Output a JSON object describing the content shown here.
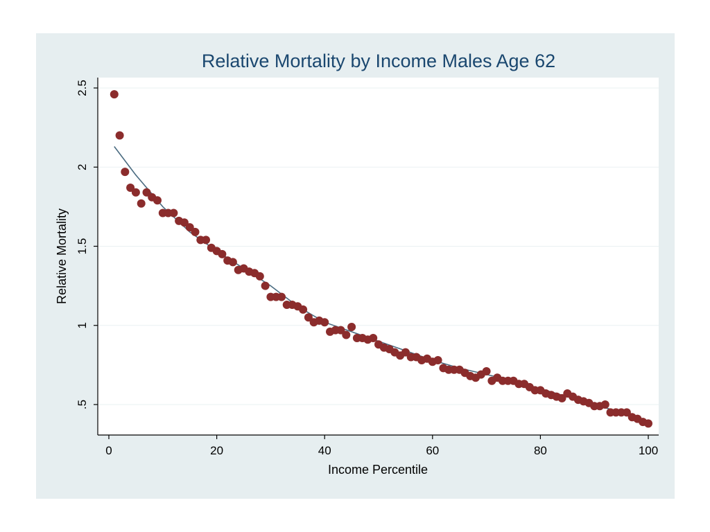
{
  "chart_data": {
    "type": "scatter",
    "title": "Relative Mortality by Income Males Age 62",
    "xlabel": "Income Percentile",
    "ylabel": "Relative Mortality",
    "xlim": [
      0,
      100
    ],
    "ylim": [
      0.4,
      2.55
    ],
    "x_ticks": [
      0,
      20,
      40,
      60,
      80,
      100
    ],
    "x_tick_labels": [
      "0",
      "20",
      "40",
      "60",
      "80",
      "100"
    ],
    "y_ticks": [
      0.5,
      1,
      1.5,
      2,
      2.5
    ],
    "y_tick_labels": [
      ".5",
      "1",
      "1.5",
      "2",
      "2.5"
    ],
    "grid": true,
    "legend": "none",
    "colors": {
      "panel_background": "#e6eef0",
      "plot_background": "#ffffff",
      "points": "#8b2c2c",
      "fit_line": "#4a6b80",
      "title": "#1a476f"
    },
    "series": [
      {
        "name": "Relative mortality",
        "kind": "scatter",
        "x": [
          1,
          2,
          3,
          4,
          5,
          6,
          7,
          8,
          9,
          10,
          11,
          12,
          13,
          14,
          15,
          16,
          17,
          18,
          19,
          20,
          21,
          22,
          23,
          24,
          25,
          26,
          27,
          28,
          29,
          30,
          31,
          32,
          33,
          34,
          35,
          36,
          37,
          38,
          39,
          40,
          41,
          42,
          43,
          44,
          45,
          46,
          47,
          48,
          49,
          50,
          51,
          52,
          53,
          54,
          55,
          56,
          57,
          58,
          59,
          60,
          61,
          62,
          63,
          64,
          65,
          66,
          67,
          68,
          69,
          70,
          71,
          72,
          73,
          74,
          75,
          76,
          77,
          78,
          79,
          80,
          81,
          82,
          83,
          84,
          85,
          86,
          87,
          88,
          89,
          90,
          91,
          92,
          93,
          94,
          95,
          96,
          97,
          98,
          99,
          100
        ],
        "y": [
          2.46,
          2.2,
          1.97,
          1.87,
          1.84,
          1.77,
          1.84,
          1.81,
          1.79,
          1.71,
          1.71,
          1.71,
          1.66,
          1.65,
          1.62,
          1.59,
          1.54,
          1.54,
          1.49,
          1.47,
          1.45,
          1.41,
          1.4,
          1.35,
          1.36,
          1.34,
          1.33,
          1.31,
          1.25,
          1.18,
          1.18,
          1.18,
          1.13,
          1.13,
          1.12,
          1.1,
          1.05,
          1.02,
          1.03,
          1.02,
          0.96,
          0.97,
          0.97,
          0.94,
          0.99,
          0.92,
          0.92,
          0.91,
          0.92,
          0.88,
          0.86,
          0.85,
          0.83,
          0.81,
          0.83,
          0.8,
          0.8,
          0.78,
          0.79,
          0.77,
          0.78,
          0.73,
          0.72,
          0.72,
          0.72,
          0.7,
          0.68,
          0.67,
          0.69,
          0.71,
          0.65,
          0.67,
          0.65,
          0.65,
          0.65,
          0.63,
          0.63,
          0.61,
          0.59,
          0.59,
          0.57,
          0.56,
          0.55,
          0.54,
          0.57,
          0.55,
          0.53,
          0.52,
          0.51,
          0.49,
          0.49,
          0.5,
          0.45,
          0.45,
          0.45,
          0.45,
          0.42,
          0.41,
          0.39,
          0.38
        ]
      },
      {
        "name": "Fitted curve",
        "kind": "line",
        "x": [
          1,
          5,
          10,
          15,
          20,
          25,
          30,
          35,
          40,
          45,
          50,
          55,
          60,
          65,
          70,
          75,
          80,
          85,
          90,
          95,
          100
        ],
        "y": [
          2.13,
          1.95,
          1.75,
          1.59,
          1.47,
          1.36,
          1.25,
          1.12,
          1.02,
          0.96,
          0.9,
          0.84,
          0.78,
          0.73,
          0.69,
          0.65,
          0.6,
          0.55,
          0.5,
          0.45,
          0.39
        ]
      }
    ]
  }
}
